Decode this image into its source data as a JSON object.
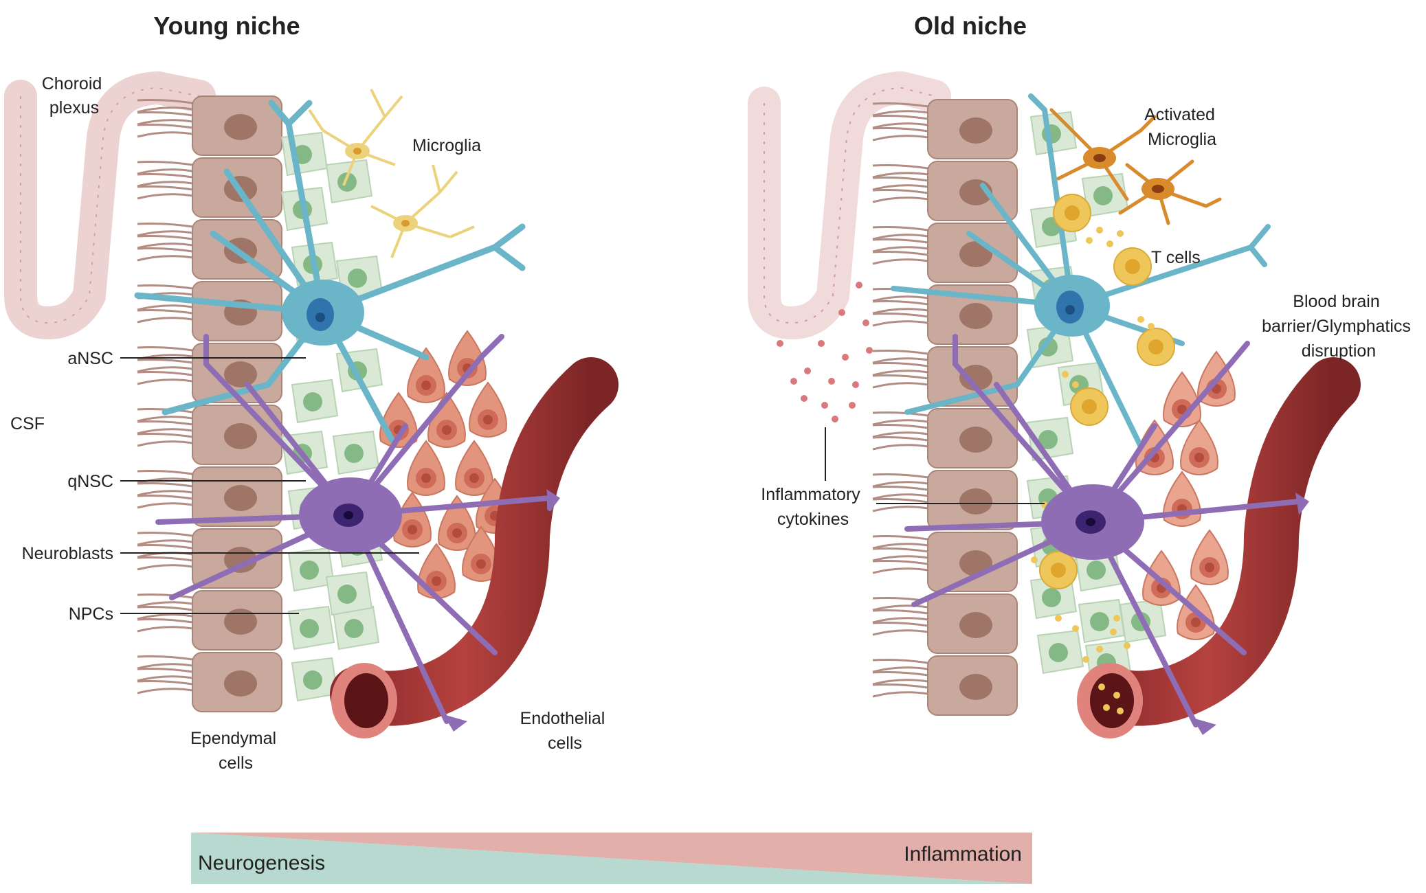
{
  "panels": {
    "young": {
      "title": "Young niche",
      "labels": {
        "choroid_plexus": [
          "Choroid",
          "plexus"
        ],
        "microglia": "Microglia",
        "ansc": "aNSC",
        "csf": "CSF",
        "qnsc": "qNSC",
        "neuroblasts": "Neuroblasts",
        "npcs": "NPCs",
        "ependymal": [
          "Ependymal",
          "cells"
        ],
        "endothelial": [
          "Endothelial",
          "cells"
        ]
      }
    },
    "old": {
      "title": "Old niche",
      "labels": {
        "activated_microglia": [
          "Activated",
          "Microglia"
        ],
        "t_cells": "T cells",
        "bbb": [
          "Blood brain",
          "barrier/Glymphatics",
          "disruption"
        ],
        "cytokines": [
          "Inflammatory",
          "cytokines"
        ]
      }
    }
  },
  "gradient": {
    "left_label": "Neurogenesis",
    "right_label": "Inflammation",
    "colors": {
      "neurogenesis": "#b7d9cf",
      "inflammation": "#e3afaa"
    }
  },
  "colors": {
    "ependymal": "#c9a99d",
    "ependymal_nucleus": "#9e7567",
    "choroid": "#ecd3d2",
    "npc_fill": "#d9e9d6",
    "npc_nucleus": "#84b986",
    "ansc": "#6bb5c8",
    "qnsc": "#8f6db5",
    "neuroblast": "#e2947c",
    "microglia_young": "#ecd27a",
    "microglia_active": "#d98a2a",
    "t_cell": "#eec65a",
    "vessel": "#a63a39"
  }
}
